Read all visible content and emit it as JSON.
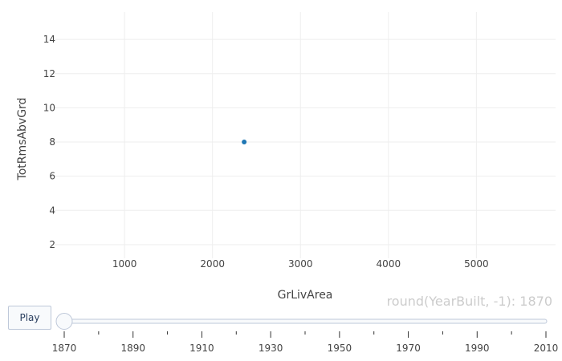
{
  "chart_data": {
    "type": "scatter",
    "xlabel": "GrLivArea",
    "ylabel": "TotRmsAbvGrd",
    "xlim": [
      150,
      5900
    ],
    "ylim": [
      1.2,
      15.6
    ],
    "x_ticks": [
      1000,
      2000,
      3000,
      4000,
      5000
    ],
    "y_ticks": [
      2,
      4,
      6,
      8,
      10,
      12,
      14
    ],
    "grid": true,
    "marker_color": "#1f77b4",
    "series": [
      {
        "x": [
          2360
        ],
        "y": [
          8
        ]
      }
    ]
  },
  "animation": {
    "play_label": "Play",
    "current_value_label": "round(YearBuilt, -1): 1870",
    "slider_values": [
      1870,
      1880,
      1890,
      1900,
      1910,
      1920,
      1930,
      1940,
      1950,
      1960,
      1970,
      1980,
      1990,
      2000,
      2010
    ],
    "slider_labels": [
      "1870",
      "1890",
      "1910",
      "1930",
      "1950",
      "1970",
      "1990",
      "2010"
    ],
    "current_index": 0
  }
}
